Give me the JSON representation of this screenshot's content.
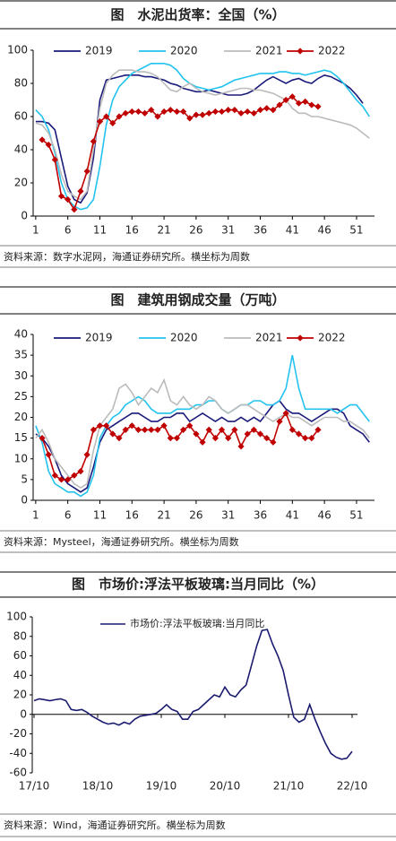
{
  "chart_data": [
    {
      "type": "line",
      "title": "图　水泥出货率：全国（%）",
      "source": "资料来源：数字水泥网，海通证券研究所。横坐标为周数",
      "x": [
        1,
        2,
        3,
        4,
        5,
        6,
        7,
        8,
        9,
        10,
        11,
        12,
        13,
        14,
        15,
        16,
        17,
        18,
        19,
        20,
        21,
        22,
        23,
        24,
        25,
        26,
        27,
        28,
        29,
        30,
        31,
        32,
        33,
        34,
        35,
        36,
        37,
        38,
        39,
        40,
        41,
        42,
        43,
        44,
        45,
        46,
        47,
        48,
        49,
        50,
        51,
        52,
        53
      ],
      "xlim": [
        0.6,
        53.8
      ],
      "xticks": [
        1,
        6,
        11,
        16,
        21,
        26,
        31,
        36,
        41,
        46,
        51
      ],
      "ylim": [
        0,
        100
      ],
      "yticks": [
        0,
        20,
        40,
        60,
        80,
        100
      ],
      "legend": "top",
      "series": [
        {
          "name": "2019",
          "color": "#1a1a7a",
          "values": [
            57,
            57,
            56,
            52,
            35,
            18,
            10,
            8,
            14,
            35,
            70,
            82,
            83,
            84,
            85,
            85,
            85,
            84,
            84,
            83,
            82,
            80,
            79,
            77,
            76,
            75,
            75,
            76,
            75,
            74,
            73,
            73,
            73,
            74,
            76,
            79,
            82,
            84,
            82,
            80,
            82,
            83,
            81,
            80,
            83,
            85,
            84,
            82,
            80,
            77,
            73,
            68,
            null
          ]
        },
        {
          "name": "2020",
          "color": "#22c3ee",
          "values": [
            64,
            60,
            52,
            38,
            20,
            10,
            6,
            4,
            5,
            10,
            30,
            55,
            70,
            78,
            82,
            86,
            88,
            90,
            92,
            92,
            92,
            91,
            88,
            83,
            80,
            78,
            77,
            76,
            77,
            78,
            80,
            82,
            83,
            84,
            85,
            86,
            86,
            86,
            87,
            87,
            86,
            86,
            85,
            86,
            87,
            88,
            87,
            84,
            80,
            75,
            70,
            66,
            60
          ]
        },
        {
          "name": "2021",
          "color": "#bbbbbb",
          "values": [
            56,
            55,
            50,
            40,
            25,
            15,
            12,
            10,
            15,
            40,
            65,
            80,
            85,
            88,
            88,
            88,
            87,
            87,
            86,
            84,
            80,
            76,
            75,
            78,
            80,
            77,
            75,
            74,
            73,
            74,
            75,
            76,
            77,
            77,
            76,
            76,
            75,
            74,
            72,
            70,
            65,
            62,
            62,
            60,
            60,
            59,
            58,
            57,
            56,
            55,
            53,
            50,
            47
          ]
        },
        {
          "name": "2022",
          "color": "#c00000",
          "marker": "diamond",
          "values": [
            null,
            46,
            43,
            34,
            12,
            10,
            4,
            15,
            27,
            45,
            57,
            60,
            56,
            60,
            62,
            63,
            63,
            62,
            64,
            60,
            63,
            64,
            63,
            63,
            59,
            61,
            61,
            62,
            63,
            63,
            64,
            64,
            62,
            63,
            62,
            64,
            65,
            64,
            67,
            70,
            72,
            68,
            69,
            67,
            66,
            null,
            null,
            null,
            null,
            null,
            null,
            null,
            null
          ]
        }
      ]
    },
    {
      "type": "line",
      "title": "图　建筑用钢成交量（万吨）",
      "source": "资料来源：Mysteel，海通证券研究所。横坐标为周数",
      "x": [
        1,
        2,
        3,
        4,
        5,
        6,
        7,
        8,
        9,
        10,
        11,
        12,
        13,
        14,
        15,
        16,
        17,
        18,
        19,
        20,
        21,
        22,
        23,
        24,
        25,
        26,
        27,
        28,
        29,
        30,
        31,
        32,
        33,
        34,
        35,
        36,
        37,
        38,
        39,
        40,
        41,
        42,
        43,
        44,
        45,
        46,
        47,
        48,
        49,
        50,
        51,
        52,
        53
      ],
      "xlim": [
        0.6,
        53.8
      ],
      "xticks": [
        1,
        6,
        11,
        16,
        21,
        26,
        31,
        36,
        41,
        46,
        51
      ],
      "ylim": [
        0,
        40
      ],
      "yticks": [
        0,
        5,
        10,
        15,
        20,
        25,
        30,
        35,
        40
      ],
      "legend": "top",
      "series": [
        {
          "name": "2019",
          "color": "#1a1a7a",
          "values": [
            16,
            15,
            13,
            10,
            6,
            4,
            3,
            2,
            3,
            8,
            14,
            17,
            18,
            19,
            20,
            21,
            21,
            20,
            19,
            19,
            20,
            20,
            21,
            21,
            19,
            20,
            21,
            20,
            19,
            20,
            19,
            19,
            20,
            19,
            20,
            19,
            21,
            23,
            24,
            22,
            21,
            21,
            20,
            19,
            20,
            21,
            22,
            22,
            21,
            18,
            17,
            16,
            14
          ]
        },
        {
          "name": "2020",
          "color": "#22c3ee",
          "values": [
            18,
            14,
            7,
            4,
            3,
            2,
            2,
            1,
            2,
            6,
            15,
            18,
            20,
            21,
            23,
            24,
            25,
            24,
            22,
            21,
            21,
            21,
            22,
            22,
            22,
            23,
            23,
            24,
            24,
            22,
            21,
            22,
            23,
            23,
            24,
            24,
            23,
            23,
            24,
            27,
            35,
            27,
            22,
            22,
            22,
            22,
            22,
            21,
            22,
            23,
            23,
            21,
            19
          ]
        },
        {
          "name": "2021",
          "color": "#bbbbbb",
          "values": [
            15,
            17,
            14,
            10,
            8,
            6,
            4,
            3,
            4,
            12,
            18,
            20,
            22,
            27,
            28,
            26,
            23,
            25,
            27,
            26,
            29,
            24,
            23,
            25,
            23,
            22,
            23,
            25,
            24,
            22,
            21,
            22,
            23,
            23,
            22,
            21,
            20,
            19,
            20,
            21,
            20,
            20,
            19,
            18,
            19,
            20,
            20,
            20,
            19,
            19,
            18,
            17,
            15
          ]
        },
        {
          "name": "2022",
          "color": "#c00000",
          "marker": "diamond",
          "values": [
            null,
            15,
            11,
            6,
            5,
            5,
            6,
            7,
            11,
            17,
            18,
            18,
            16,
            15,
            17,
            18,
            17,
            17,
            17,
            17,
            18,
            15,
            15,
            17,
            18,
            16,
            14,
            17,
            15,
            17,
            15,
            17,
            13,
            16,
            17,
            16,
            15,
            14,
            19,
            21,
            17,
            16,
            15,
            15,
            17,
            null,
            null,
            null,
            null,
            null,
            null,
            null,
            null
          ]
        }
      ]
    },
    {
      "type": "line",
      "title": "图　市场价:浮法平板玻璃:当月同比（%）",
      "source": "资料来源：Wind，海通证券研究所。横坐标为周数",
      "categories": [
        "17/10",
        null,
        null,
        null,
        null,
        null,
        null,
        null,
        null,
        null,
        null,
        null,
        "18/10",
        null,
        null,
        null,
        null,
        null,
        null,
        null,
        null,
        null,
        null,
        null,
        "19/10",
        null,
        null,
        null,
        null,
        null,
        null,
        null,
        null,
        null,
        null,
        null,
        "20/10",
        null,
        null,
        null,
        null,
        null,
        null,
        null,
        null,
        null,
        null,
        null,
        "21/10",
        null,
        null,
        null,
        null,
        null,
        null,
        null,
        null,
        null,
        null,
        null,
        "22/10"
      ],
      "ylim": [
        -60,
        100
      ],
      "yticks": [
        -60,
        -40,
        -20,
        0,
        20,
        40,
        60,
        80,
        100
      ],
      "legend": "inside-top",
      "series": [
        {
          "name": "市场价:浮法平板玻璃:当月同比",
          "color": "#1a1a6e",
          "values": [
            14,
            16,
            15,
            14,
            15,
            16,
            14,
            5,
            4,
            5,
            2,
            -2,
            -5,
            -8,
            -10,
            -9,
            -11,
            -8,
            -10,
            -5,
            -2,
            -1,
            0,
            1,
            5,
            10,
            5,
            3,
            -5,
            -5,
            3,
            5,
            10,
            15,
            20,
            18,
            28,
            20,
            18,
            25,
            30,
            50,
            70,
            86,
            87,
            72,
            60,
            45,
            20,
            -3,
            -8,
            -5,
            10,
            -5,
            -18,
            -30,
            -40,
            -44,
            -46,
            -45,
            -38
          ]
        }
      ]
    }
  ]
}
